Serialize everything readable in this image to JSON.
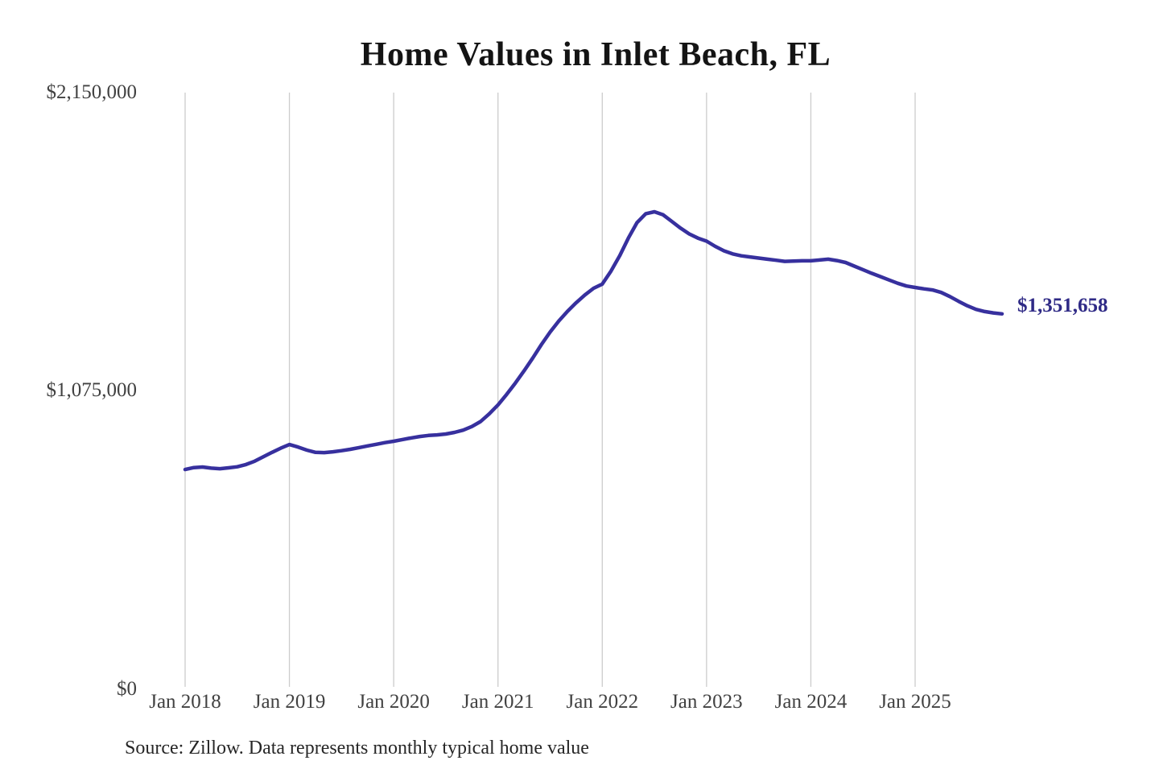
{
  "page": {
    "title": "Home Values in Inlet Beach, FL",
    "source_note": "Source: Zillow. Data represents monthly typical home value"
  },
  "chart_data": {
    "type": "line",
    "title": "Home Values in Inlet Beach, FL",
    "series_name": "Monthly typical home value",
    "unit": "USD",
    "source": "Source: Zillow. Data represents monthly typical home value",
    "line_color": "#37309e",
    "end_label_color": "#2f2a86",
    "grid_color": "#cccccc",
    "grid": "vertical-only",
    "legend": "none",
    "ylim": [
      0,
      2150000
    ],
    "y_tick_values": [
      0,
      1075000,
      2150000
    ],
    "y_tick_labels": [
      "$0",
      "$1,075,000",
      "$2,150,000"
    ],
    "x_tick_labels": [
      "Jan 2018",
      "Jan 2019",
      "Jan 2020",
      "Jan 2021",
      "Jan 2022",
      "Jan 2023",
      "Jan 2024",
      "Jan 2025"
    ],
    "end_label": "$1,351,658",
    "latest_value": 1351658,
    "x": [
      "2018-01",
      "2018-02",
      "2018-03",
      "2018-04",
      "2018-05",
      "2018-06",
      "2018-07",
      "2018-08",
      "2018-09",
      "2018-10",
      "2018-11",
      "2018-12",
      "2019-01",
      "2019-02",
      "2019-03",
      "2019-04",
      "2019-05",
      "2019-06",
      "2019-07",
      "2019-08",
      "2019-09",
      "2019-10",
      "2019-11",
      "2019-12",
      "2020-01",
      "2020-02",
      "2020-03",
      "2020-04",
      "2020-05",
      "2020-06",
      "2020-07",
      "2020-08",
      "2020-09",
      "2020-10",
      "2020-11",
      "2020-12",
      "2021-01",
      "2021-02",
      "2021-03",
      "2021-04",
      "2021-05",
      "2021-06",
      "2021-07",
      "2021-08",
      "2021-09",
      "2021-10",
      "2021-11",
      "2021-12",
      "2022-01",
      "2022-02",
      "2022-03",
      "2022-04",
      "2022-05",
      "2022-06",
      "2022-07",
      "2022-08",
      "2022-09",
      "2022-10",
      "2022-11",
      "2022-12",
      "2023-01",
      "2023-02",
      "2023-03",
      "2023-04",
      "2023-05",
      "2023-06",
      "2023-07",
      "2023-08",
      "2023-09",
      "2023-10",
      "2023-11",
      "2023-12",
      "2024-01",
      "2024-02",
      "2024-03",
      "2024-04",
      "2024-05",
      "2024-06",
      "2024-07",
      "2024-08",
      "2024-09",
      "2024-10",
      "2024-11",
      "2024-12",
      "2025-01",
      "2025-02",
      "2025-03",
      "2025-04",
      "2025-05",
      "2025-06",
      "2025-07",
      "2025-08",
      "2025-09",
      "2025-10",
      "2025-11"
    ],
    "values": [
      790000,
      797000,
      799000,
      795000,
      793000,
      796000,
      800000,
      808000,
      820000,
      836000,
      852000,
      867000,
      880000,
      871000,
      860000,
      852000,
      851000,
      854000,
      858000,
      863000,
      869000,
      875000,
      881000,
      887000,
      892000,
      898000,
      904000,
      909000,
      913000,
      915000,
      918000,
      924000,
      932000,
      945000,
      963000,
      991000,
      1023000,
      1061000,
      1102000,
      1146000,
      1192000,
      1241000,
      1286000,
      1326000,
      1361000,
      1392000,
      1420000,
      1444000,
      1459000,
      1506000,
      1561000,
      1625000,
      1681000,
      1713000,
      1720000,
      1709000,
      1685000,
      1661000,
      1640000,
      1625000,
      1614000,
      1595000,
      1579000,
      1568000,
      1561000,
      1557000,
      1553000,
      1549000,
      1545000,
      1541000,
      1542000,
      1543000,
      1543000,
      1546000,
      1549000,
      1544000,
      1537000,
      1524000,
      1511000,
      1498000,
      1486000,
      1474000,
      1462000,
      1452000,
      1447000,
      1442000,
      1438000,
      1429000,
      1414000,
      1397000,
      1381000,
      1368000,
      1360000,
      1355000,
      1351658
    ]
  }
}
